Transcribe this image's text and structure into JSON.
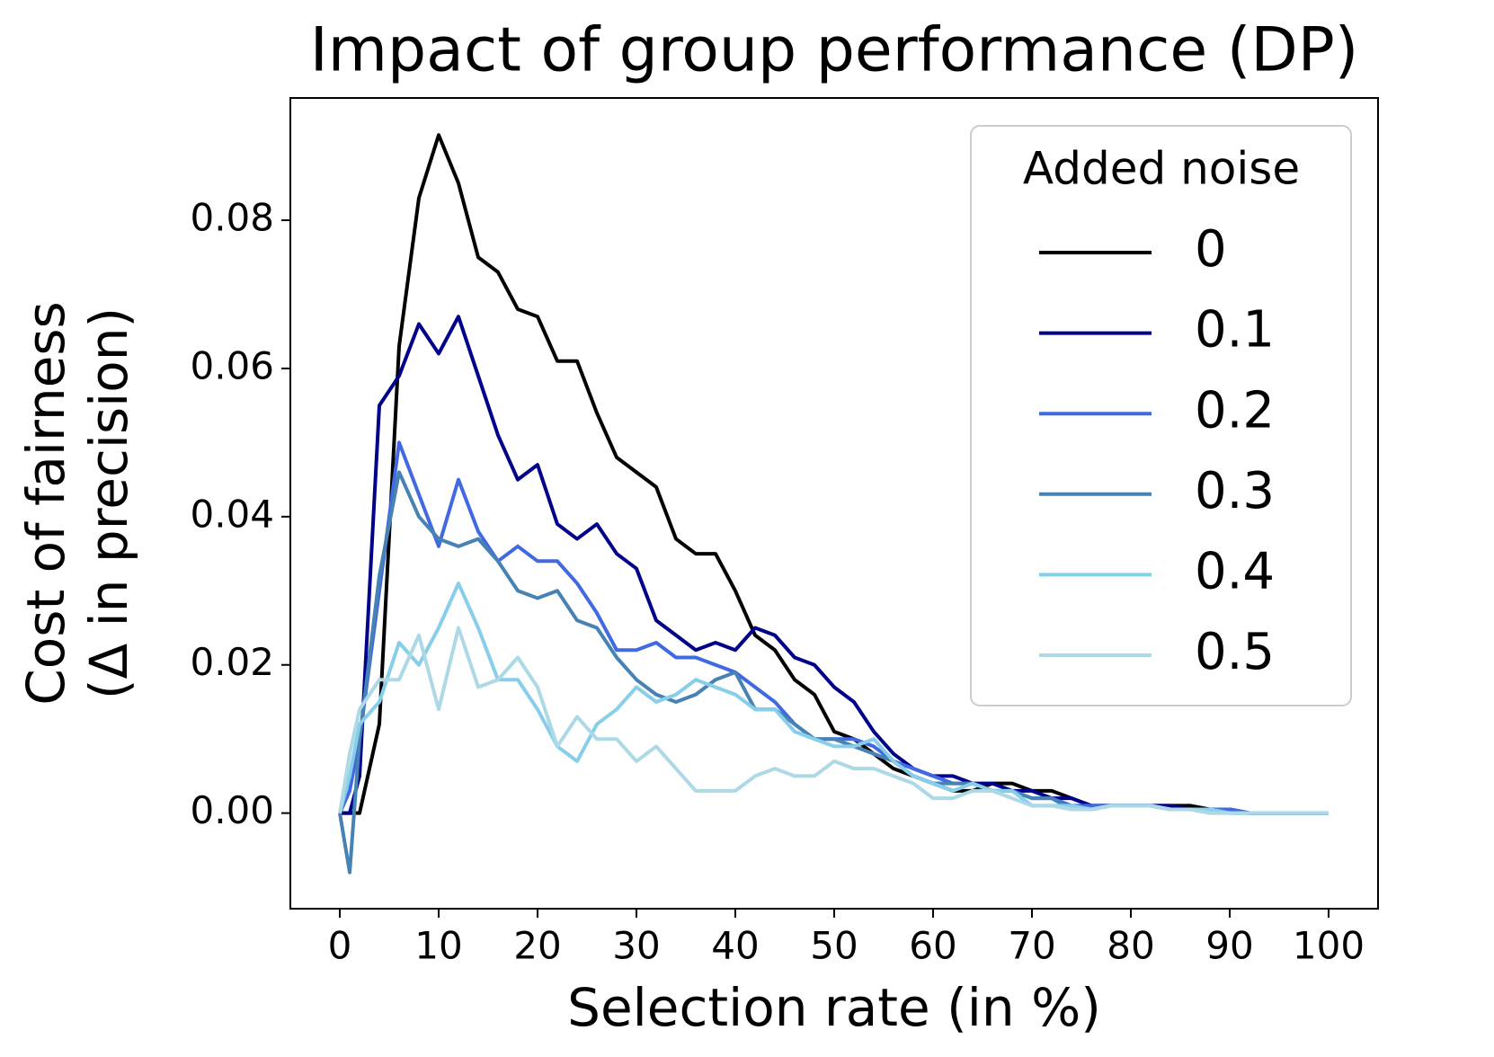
{
  "chart_data": {
    "type": "line",
    "title": "Impact of group performance (DP)",
    "xlabel": "Selection rate (in %)",
    "ylabel": [
      "Cost of fairness",
      "(Δ in precision)"
    ],
    "legend_title": "Added noise",
    "legend_position": "upper right",
    "x": [
      0,
      1,
      2,
      4,
      6,
      8,
      10,
      12,
      14,
      16,
      18,
      20,
      22,
      24,
      26,
      28,
      30,
      32,
      34,
      36,
      38,
      40,
      42,
      44,
      46,
      48,
      50,
      52,
      54,
      56,
      58,
      60,
      62,
      64,
      66,
      68,
      70,
      72,
      74,
      76,
      78,
      80,
      82,
      84,
      86,
      88,
      90,
      92,
      94,
      96,
      98,
      100
    ],
    "series": [
      {
        "name": "0",
        "color": "#000000",
        "values": [
          0,
          0,
          0,
          0.012,
          0.063,
          0.083,
          0.0915,
          0.085,
          0.075,
          0.073,
          0.068,
          0.067,
          0.061,
          0.061,
          0.054,
          0.048,
          0.046,
          0.044,
          0.037,
          0.035,
          0.035,
          0.03,
          0.024,
          0.022,
          0.018,
          0.016,
          0.011,
          0.01,
          0.008,
          0.006,
          0.005,
          0.004,
          0.003,
          0.003,
          0.004,
          0.004,
          0.003,
          0.003,
          0.002,
          0.001,
          0.001,
          0.001,
          0.001,
          0.001,
          0.001,
          0.0005,
          0.0005,
          0,
          0,
          0,
          0,
          0
        ]
      },
      {
        "name": "0.1",
        "color": "#00008b",
        "values": [
          0,
          0,
          0.005,
          0.055,
          0.059,
          0.066,
          0.062,
          0.067,
          0.059,
          0.051,
          0.045,
          0.047,
          0.039,
          0.037,
          0.039,
          0.035,
          0.033,
          0.026,
          0.024,
          0.022,
          0.023,
          0.022,
          0.025,
          0.024,
          0.021,
          0.02,
          0.017,
          0.015,
          0.011,
          0.008,
          0.006,
          0.005,
          0.005,
          0.004,
          0.004,
          0.003,
          0.003,
          0.002,
          0.002,
          0.001,
          0.001,
          0.001,
          0.001,
          0.001,
          0.0005,
          0.0005,
          0.0005,
          0,
          0,
          0,
          0,
          0
        ]
      },
      {
        "name": "0.2",
        "color": "#4169e1",
        "values": [
          0,
          0.003,
          0.01,
          0.03,
          0.05,
          0.043,
          0.036,
          0.045,
          0.038,
          0.034,
          0.036,
          0.034,
          0.034,
          0.031,
          0.027,
          0.022,
          0.022,
          0.023,
          0.021,
          0.021,
          0.02,
          0.019,
          0.017,
          0.015,
          0.012,
          0.01,
          0.01,
          0.01,
          0.009,
          0.007,
          0.006,
          0.005,
          0.004,
          0.004,
          0.003,
          0.003,
          0.002,
          0.002,
          0.001,
          0.001,
          0.001,
          0.001,
          0.001,
          0.0005,
          0.0005,
          0.0005,
          0.0005,
          0,
          0,
          0,
          0,
          0
        ]
      },
      {
        "name": "0.3",
        "color": "#4682b4",
        "values": [
          0,
          -0.008,
          0.01,
          0.032,
          0.046,
          0.04,
          0.037,
          0.036,
          0.037,
          0.034,
          0.03,
          0.029,
          0.03,
          0.026,
          0.025,
          0.021,
          0.018,
          0.016,
          0.015,
          0.016,
          0.018,
          0.019,
          0.014,
          0.014,
          0.012,
          0.01,
          0.01,
          0.009,
          0.008,
          0.007,
          0.005,
          0.004,
          0.004,
          0.004,
          0.003,
          0.003,
          0.002,
          0.002,
          0.0005,
          0.0005,
          0.001,
          0.001,
          0.001,
          0.0005,
          0.0005,
          0.0005,
          0,
          0,
          0,
          0,
          0,
          0
        ]
      },
      {
        "name": "0.4",
        "color": "#87ceeb",
        "values": [
          0,
          0.005,
          0.012,
          0.015,
          0.023,
          0.02,
          0.025,
          0.031,
          0.025,
          0.018,
          0.018,
          0.014,
          0.009,
          0.007,
          0.012,
          0.014,
          0.017,
          0.015,
          0.016,
          0.018,
          0.017,
          0.016,
          0.014,
          0.014,
          0.011,
          0.01,
          0.009,
          0.009,
          0.01,
          0.007,
          0.005,
          0.004,
          0.003,
          0.004,
          0.003,
          0.003,
          0.001,
          0.001,
          0.001,
          0.0005,
          0.001,
          0.001,
          0.001,
          0.0005,
          0.0005,
          0.0005,
          0,
          0,
          0,
          0,
          0,
          0
        ]
      },
      {
        "name": "0.5",
        "color": "#add8e6",
        "values": [
          0,
          0.008,
          0.014,
          0.018,
          0.018,
          0.024,
          0.014,
          0.025,
          0.017,
          0.018,
          0.021,
          0.017,
          0.009,
          0.013,
          0.01,
          0.01,
          0.007,
          0.009,
          0.006,
          0.003,
          0.003,
          0.003,
          0.005,
          0.006,
          0.005,
          0.005,
          0.007,
          0.006,
          0.006,
          0.005,
          0.004,
          0.002,
          0.002,
          0.003,
          0.003,
          0.002,
          0.001,
          0.001,
          0.0005,
          0.0005,
          0.001,
          0.001,
          0.001,
          0.0005,
          0.0005,
          0,
          0,
          0,
          0,
          0,
          0,
          0
        ]
      }
    ],
    "xlim": [
      -5,
      105
    ],
    "ylim": [
      -0.0129,
      0.0965
    ],
    "xticks": [
      0,
      10,
      20,
      30,
      40,
      50,
      60,
      70,
      80,
      90,
      100
    ],
    "yticks": [
      {
        "value": 0,
        "label": "0.00"
      },
      {
        "value": 0.02,
        "label": "0.02"
      },
      {
        "value": 0.04,
        "label": "0.04"
      },
      {
        "value": 0.06,
        "label": "0.06"
      },
      {
        "value": 0.08,
        "label": "0.08"
      }
    ]
  }
}
